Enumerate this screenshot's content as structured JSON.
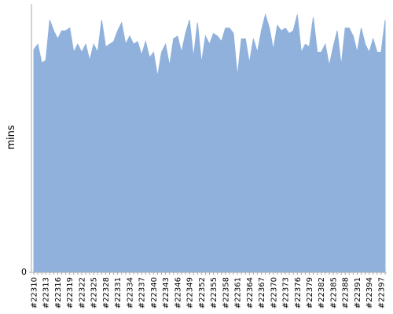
{
  "chart_data": {
    "type": "area",
    "y_label": "mins",
    "color": "#8fb1dc",
    "categories": [
      "#22310",
      null,
      null,
      "#22313",
      null,
      null,
      "#22316",
      null,
      null,
      "#22319",
      null,
      null,
      "#22322",
      null,
      null,
      "#22325",
      null,
      null,
      "#22328",
      null,
      null,
      "#22331",
      null,
      null,
      "#22334",
      null,
      null,
      "#22337",
      null,
      null,
      "#22340",
      null,
      null,
      "#22343",
      null,
      null,
      "#22346",
      null,
      null,
      "#22349",
      null,
      null,
      "#22352",
      null,
      null,
      "#22355",
      null,
      null,
      "#22358",
      null,
      null,
      "#22361",
      null,
      null,
      "#22364",
      null,
      null,
      "#22367",
      null,
      null,
      "#22370",
      null,
      null,
      "#22373",
      null,
      null,
      "#22376",
      null,
      null,
      "#22379",
      null,
      null,
      "#22382",
      null,
      null,
      "#22385",
      null,
      null,
      "#22388",
      null,
      null,
      "#22391",
      null,
      null,
      "#22394",
      null,
      null,
      "#22397",
      null
    ],
    "values": [
      83,
      85,
      78,
      79,
      94,
      90,
      87,
      90,
      90,
      91,
      82,
      85,
      82,
      85,
      79,
      85,
      82,
      94,
      84,
      85,
      86,
      90,
      93,
      85,
      88,
      85,
      86,
      81,
      86,
      80,
      82,
      73,
      82,
      85,
      77,
      87,
      88,
      82,
      89,
      94,
      80,
      93,
      78,
      88,
      85,
      89,
      88,
      86,
      91,
      91,
      89,
      73,
      87,
      87,
      78,
      87,
      82,
      90,
      96,
      91,
      83,
      92,
      90,
      91,
      89,
      90,
      96,
      82,
      85,
      84,
      95,
      82,
      82,
      85,
      77,
      84,
      90,
      77,
      91,
      91,
      88,
      82,
      91,
      85,
      82,
      87,
      82,
      82,
      94
    ],
    "ylim": [
      0,
      100
    ],
    "yticks": [
      0
    ]
  }
}
